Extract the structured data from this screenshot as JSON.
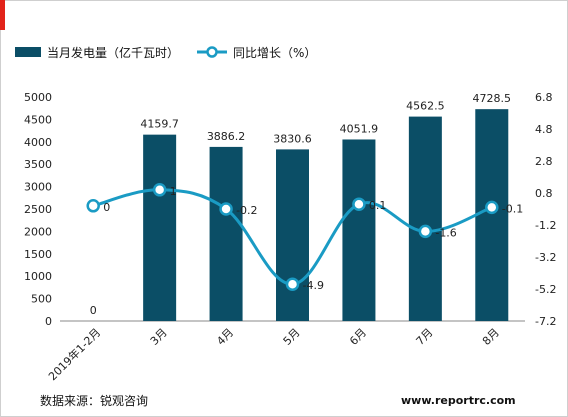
{
  "chart_data": {
    "type": "bar+line",
    "categories": [
      "2019年1-2月",
      "3月",
      "4月",
      "5月",
      "6月",
      "7月",
      "8月"
    ],
    "series": [
      {
        "name": "当月发电量（亿千瓦时）",
        "type": "bar",
        "axis": "left",
        "values": [
          0,
          4159.7,
          3886.2,
          3830.6,
          4051.9,
          4562.5,
          4728.5
        ],
        "labels": [
          "0",
          "4159.7",
          "3886.2",
          "3830.6",
          "4051.9",
          "4562.5",
          "4728.5"
        ],
        "color": "#0b4e66"
      },
      {
        "name": "同比增长（%）",
        "type": "line",
        "axis": "right",
        "values": [
          0,
          1,
          -0.2,
          -4.9,
          0.1,
          -1.6,
          -0.1
        ],
        "labels": [
          "0",
          "1",
          "-0.2",
          "-4.9",
          "0.1",
          "-1.6",
          "-0.1"
        ],
        "color": "#1a9bc4"
      }
    ],
    "left_axis": {
      "min": 0,
      "max": 5000,
      "ticks": [
        "5000",
        "4500",
        "4000",
        "3500",
        "3000",
        "2500",
        "2000",
        "1500",
        "1000",
        "500",
        "0"
      ]
    },
    "right_axis": {
      "min": -7.2,
      "max": 6.8,
      "ticks": [
        "6.8",
        "4.8",
        "2.8",
        "0.8",
        "-1.2",
        "-3.2",
        "-5.2",
        "-7.2"
      ]
    },
    "legend_position": "top-left",
    "grid": false
  },
  "footer": {
    "source": "数据来源：锐观咨询",
    "site": "www.reportrc.com"
  }
}
